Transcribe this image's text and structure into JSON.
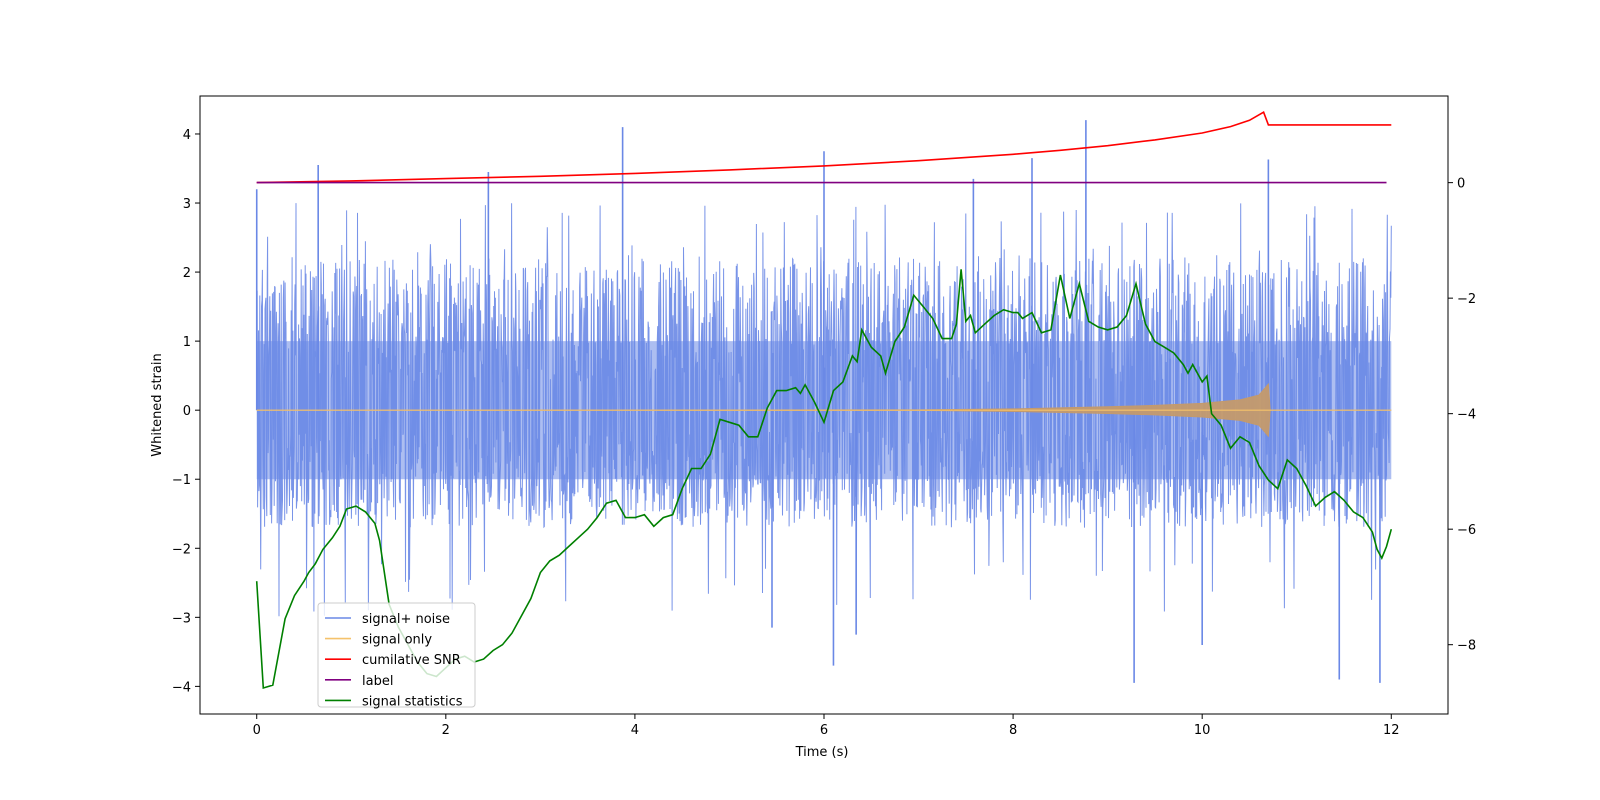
{
  "chart_data": {
    "type": "line",
    "title": "",
    "xlabel": "Time (s)",
    "ylabel": "Whitened strain",
    "y2label": "",
    "xlim": [
      -0.6,
      12.6
    ],
    "ylim": [
      -4.4,
      4.55
    ],
    "y2lim": [
      -9.2,
      1.5
    ],
    "xticks": [
      0,
      2,
      4,
      6,
      8,
      10,
      12
    ],
    "yticks": [
      -4,
      -3,
      -2,
      -1,
      0,
      1,
      2,
      3,
      4
    ],
    "y2ticks": [
      -8,
      -6,
      -4,
      -2,
      0
    ],
    "legend_position": "lower-left",
    "colors": {
      "signal_noise": "#6a88e6",
      "signal_only": "#f5c26b",
      "signal_only_fill": "#c49a6c",
      "snr": "#ff0000",
      "label": "#800080",
      "stats": "#008000"
    },
    "series": [
      {
        "name": "signal+ noise",
        "axis": "left",
        "description": "dense noise centered at 0, typical band about -1.6 to 2.4",
        "x_range": [
          0,
          12
        ],
        "band": [
          -1.6,
          2.4
        ],
        "spikes": [
          [
            0.0,
            3.2
          ],
          [
            0.65,
            3.55
          ],
          [
            2.45,
            3.45
          ],
          [
            3.87,
            4.1
          ],
          [
            6.0,
            3.75
          ],
          [
            7.58,
            3.35
          ],
          [
            8.2,
            3.65
          ],
          [
            8.77,
            4.2
          ],
          [
            10.7,
            3.63
          ],
          [
            10.0,
            -3.4
          ],
          [
            9.28,
            -3.95
          ],
          [
            11.88,
            -3.95
          ],
          [
            11.45,
            -3.9
          ],
          [
            6.1,
            -3.7
          ],
          [
            6.34,
            -3.25
          ],
          [
            5.45,
            -3.15
          ]
        ]
      },
      {
        "name": "signal only",
        "axis": "left",
        "description": "zero until a chirp grows toward merger near 10.7 s",
        "envelope": [
          [
            0,
            0
          ],
          [
            7.0,
            0.005
          ],
          [
            8.0,
            0.02
          ],
          [
            9.0,
            0.05
          ],
          [
            9.5,
            0.07
          ],
          [
            10.0,
            0.1
          ],
          [
            10.4,
            0.15
          ],
          [
            10.6,
            0.22
          ],
          [
            10.7,
            0.38
          ],
          [
            10.72,
            0
          ],
          [
            12,
            0
          ]
        ]
      },
      {
        "name": "cumilative SNR",
        "axis": "right",
        "points": [
          [
            0,
            0.0
          ],
          [
            1,
            0.03
          ],
          [
            2,
            0.07
          ],
          [
            3,
            0.11
          ],
          [
            4,
            0.16
          ],
          [
            5,
            0.22
          ],
          [
            6,
            0.29
          ],
          [
            7,
            0.38
          ],
          [
            8,
            0.49
          ],
          [
            8.5,
            0.56
          ],
          [
            9,
            0.64
          ],
          [
            9.5,
            0.74
          ],
          [
            10,
            0.86
          ],
          [
            10.3,
            0.97
          ],
          [
            10.5,
            1.08
          ],
          [
            10.65,
            1.22
          ],
          [
            10.7,
            1.0
          ],
          [
            12,
            1.0
          ]
        ]
      },
      {
        "name": "label",
        "axis": "right",
        "points": [
          [
            0,
            0
          ],
          [
            11.95,
            0
          ]
        ]
      },
      {
        "name": "signal statistics",
        "axis": "right",
        "points": [
          [
            0,
            -6.9
          ],
          [
            0.07,
            -8.75
          ],
          [
            0.17,
            -8.7
          ],
          [
            0.3,
            -7.55
          ],
          [
            0.4,
            -7.15
          ],
          [
            0.5,
            -6.9
          ],
          [
            0.55,
            -6.75
          ],
          [
            0.62,
            -6.6
          ],
          [
            0.7,
            -6.35
          ],
          [
            0.8,
            -6.15
          ],
          [
            0.88,
            -5.95
          ],
          [
            0.95,
            -5.65
          ],
          [
            1.05,
            -5.6
          ],
          [
            1.15,
            -5.7
          ],
          [
            1.25,
            -5.9
          ],
          [
            1.3,
            -6.2
          ],
          [
            1.4,
            -7.3
          ],
          [
            1.5,
            -7.7
          ],
          [
            1.6,
            -8.0
          ],
          [
            1.7,
            -8.3
          ],
          [
            1.8,
            -8.5
          ],
          [
            1.9,
            -8.55
          ],
          [
            2.0,
            -8.4
          ],
          [
            2.1,
            -8.25
          ],
          [
            2.2,
            -8.2
          ],
          [
            2.3,
            -8.3
          ],
          [
            2.4,
            -8.25
          ],
          [
            2.5,
            -8.1
          ],
          [
            2.6,
            -8.0
          ],
          [
            2.7,
            -7.8
          ],
          [
            2.8,
            -7.5
          ],
          [
            2.9,
            -7.2
          ],
          [
            3.0,
            -6.75
          ],
          [
            3.1,
            -6.55
          ],
          [
            3.2,
            -6.45
          ],
          [
            3.3,
            -6.3
          ],
          [
            3.4,
            -6.15
          ],
          [
            3.5,
            -6.0
          ],
          [
            3.6,
            -5.8
          ],
          [
            3.7,
            -5.55
          ],
          [
            3.8,
            -5.5
          ],
          [
            3.9,
            -5.8
          ],
          [
            4.0,
            -5.8
          ],
          [
            4.1,
            -5.75
          ],
          [
            4.2,
            -5.95
          ],
          [
            4.3,
            -5.8
          ],
          [
            4.4,
            -5.75
          ],
          [
            4.5,
            -5.3
          ],
          [
            4.6,
            -4.95
          ],
          [
            4.7,
            -4.95
          ],
          [
            4.8,
            -4.7
          ],
          [
            4.9,
            -4.1
          ],
          [
            5.0,
            -4.15
          ],
          [
            5.1,
            -4.2
          ],
          [
            5.2,
            -4.4
          ],
          [
            5.3,
            -4.4
          ],
          [
            5.4,
            -3.9
          ],
          [
            5.5,
            -3.6
          ],
          [
            5.6,
            -3.6
          ],
          [
            5.7,
            -3.55
          ],
          [
            5.75,
            -3.65
          ],
          [
            5.8,
            -3.5
          ],
          [
            5.9,
            -3.8
          ],
          [
            6.0,
            -4.15
          ],
          [
            6.1,
            -3.6
          ],
          [
            6.2,
            -3.45
          ],
          [
            6.3,
            -3.0
          ],
          [
            6.35,
            -3.1
          ],
          [
            6.4,
            -2.55
          ],
          [
            6.5,
            -2.85
          ],
          [
            6.6,
            -3.0
          ],
          [
            6.65,
            -3.3
          ],
          [
            6.75,
            -2.75
          ],
          [
            6.85,
            -2.5
          ],
          [
            6.95,
            -1.95
          ],
          [
            7.05,
            -2.15
          ],
          [
            7.15,
            -2.35
          ],
          [
            7.25,
            -2.7
          ],
          [
            7.35,
            -2.7
          ],
          [
            7.4,
            -2.45
          ],
          [
            7.45,
            -1.5
          ],
          [
            7.5,
            -2.4
          ],
          [
            7.55,
            -2.3
          ],
          [
            7.6,
            -2.6
          ],
          [
            7.7,
            -2.45
          ],
          [
            7.8,
            -2.3
          ],
          [
            7.9,
            -2.2
          ],
          [
            8.0,
            -2.25
          ],
          [
            8.05,
            -2.25
          ],
          [
            8.1,
            -2.35
          ],
          [
            8.2,
            -2.25
          ],
          [
            8.3,
            -2.6
          ],
          [
            8.4,
            -2.55
          ],
          [
            8.5,
            -1.6
          ],
          [
            8.6,
            -2.35
          ],
          [
            8.7,
            -1.75
          ],
          [
            8.8,
            -2.4
          ],
          [
            8.9,
            -2.5
          ],
          [
            9.0,
            -2.55
          ],
          [
            9.1,
            -2.5
          ],
          [
            9.2,
            -2.3
          ],
          [
            9.3,
            -1.75
          ],
          [
            9.35,
            -2.1
          ],
          [
            9.4,
            -2.45
          ],
          [
            9.5,
            -2.75
          ],
          [
            9.6,
            -2.85
          ],
          [
            9.7,
            -2.95
          ],
          [
            9.8,
            -3.15
          ],
          [
            9.85,
            -3.3
          ],
          [
            9.9,
            -3.15
          ],
          [
            10.0,
            -3.45
          ],
          [
            10.05,
            -3.35
          ],
          [
            10.1,
            -4.0
          ],
          [
            10.2,
            -4.2
          ],
          [
            10.3,
            -4.6
          ],
          [
            10.4,
            -4.4
          ],
          [
            10.5,
            -4.5
          ],
          [
            10.6,
            -4.9
          ],
          [
            10.7,
            -5.15
          ],
          [
            10.8,
            -5.3
          ],
          [
            10.9,
            -4.8
          ],
          [
            11.0,
            -4.95
          ],
          [
            11.1,
            -5.25
          ],
          [
            11.2,
            -5.6
          ],
          [
            11.3,
            -5.45
          ],
          [
            11.4,
            -5.35
          ],
          [
            11.5,
            -5.5
          ],
          [
            11.6,
            -5.7
          ],
          [
            11.7,
            -5.8
          ],
          [
            11.8,
            -6.05
          ],
          [
            11.85,
            -6.35
          ],
          [
            11.9,
            -6.5
          ],
          [
            11.95,
            -6.3
          ],
          [
            12.0,
            -6.0
          ]
        ]
      }
    ]
  },
  "legend": {
    "items": [
      {
        "key": "signal_noise",
        "label": "signal+ noise"
      },
      {
        "key": "signal_only",
        "label": "signal only"
      },
      {
        "key": "snr",
        "label": "cumilative SNR"
      },
      {
        "key": "label",
        "label": "label"
      },
      {
        "key": "stats",
        "label": "signal statistics"
      }
    ]
  }
}
